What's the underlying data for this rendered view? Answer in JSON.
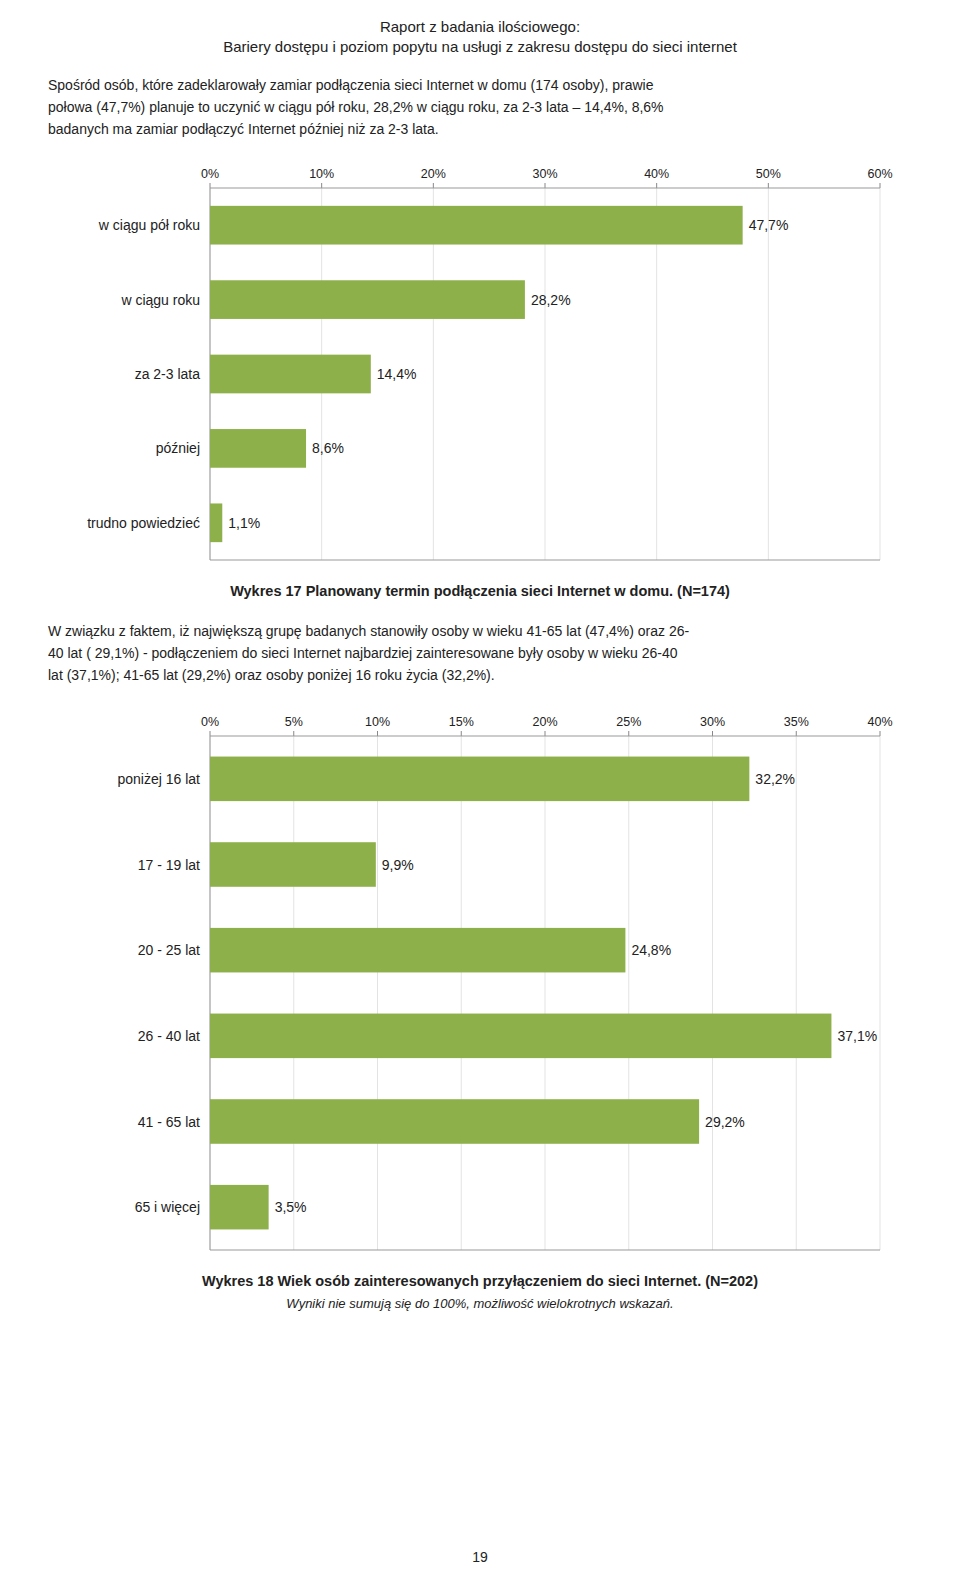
{
  "title": "Raport z badania ilościowego:",
  "subtitle": "Bariery dostępu i poziom popytu na usługi z zakresu dostępu do sieci internet",
  "annotations": [
    "19"
  ],
  "chart_data": [
    {
      "type": "bar",
      "orientation": "horizontal",
      "title": "Wykres 17 Planowany termin podłączenia sieci Internet w domu. (N=174)",
      "annotations": [
        "Spośród osób, które zadeklarowały zamiar podłączenia sieci Internet w domu (174 osoby), prawie",
        "połowa (47,7%) planuje to uczynić w ciągu pół roku, 28,2% w ciągu roku, za 2-3 lata – 14,4%, 8,6%",
        "badanych ma zamiar podłączyć Internet później niż za 2-3 lata."
      ],
      "categories": [
        "w ciągu pół roku",
        "w ciągu roku",
        "za 2-3 lata",
        "później",
        "trudno powiedzieć"
      ],
      "values": [
        47.7,
        28.2,
        14.4,
        8.6,
        1.1
      ],
      "value_labels": [
        "47,7%",
        "28,2%",
        "14,4%",
        "8,6%",
        "1,1%"
      ],
      "data_labels": true,
      "color": "#8db04a",
      "xlim": [
        0,
        60
      ],
      "xticks": [
        {
          "value": 0,
          "label": "0%"
        },
        {
          "value": 10,
          "label": "10%"
        },
        {
          "value": 20,
          "label": "20%"
        },
        {
          "value": 30,
          "label": "30%"
        },
        {
          "value": 40,
          "label": "40%"
        },
        {
          "value": 50,
          "label": "50%"
        },
        {
          "value": 60,
          "label": "60%"
        }
      ],
      "grid": true
    },
    {
      "type": "bar",
      "orientation": "horizontal",
      "title": "Wykres 18 Wiek osób zainteresowanych przyłączeniem do sieci Internet. (N=202)",
      "subtitle": "Wyniki nie sumują się do 100%, możliwość wielokrotnych wskazań.",
      "annotations": [
        "W związku z faktem, iż największą grupę badanych stanowiły osoby w wieku 41-65 lat (47,4%) oraz 26-",
        "40 lat ( 29,1%) - podłączeniem do sieci Internet najbardziej zainteresowane były osoby w wieku 26-40",
        "lat (37,1%);  41-65 lat (29,2%) oraz osoby poniżej 16 roku życia (32,2%)."
      ],
      "categories": [
        "poniżej 16 lat",
        "17 - 19 lat",
        "20 - 25 lat",
        "26 - 40 lat",
        "41 - 65 lat",
        "65 i więcej"
      ],
      "values": [
        32.2,
        9.9,
        24.8,
        37.1,
        29.2,
        3.5
      ],
      "value_labels": [
        "32,2%",
        "9,9%",
        "24,8%",
        "37,1%",
        "29,2%",
        "3,5%"
      ],
      "data_labels": true,
      "color": "#8db04a",
      "xlim": [
        0,
        40
      ],
      "xticks": [
        {
          "value": 0,
          "label": "0%"
        },
        {
          "value": 5,
          "label": "5%"
        },
        {
          "value": 10,
          "label": "10%"
        },
        {
          "value": 15,
          "label": "15%"
        },
        {
          "value": 20,
          "label": "20%"
        },
        {
          "value": 25,
          "label": "25%"
        },
        {
          "value": 30,
          "label": "30%"
        },
        {
          "value": 35,
          "label": "35%"
        },
        {
          "value": 40,
          "label": "40%"
        }
      ],
      "grid": true
    }
  ]
}
